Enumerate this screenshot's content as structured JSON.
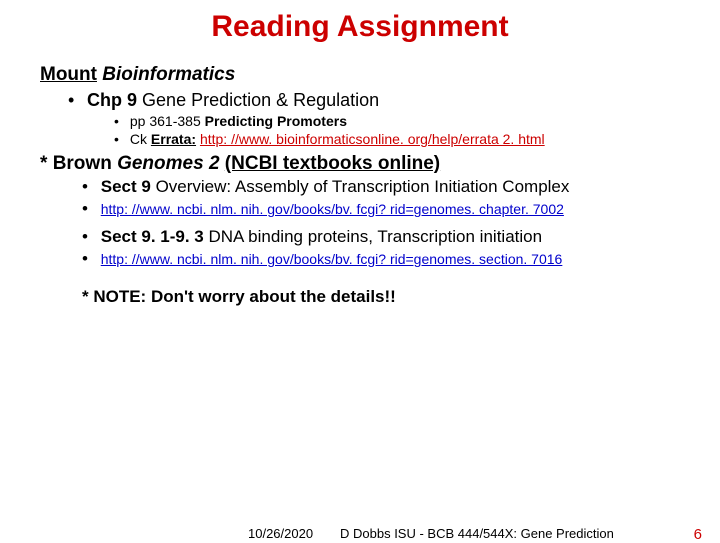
{
  "title": "Reading Assignment",
  "section1": {
    "heading_author": "Mount",
    "heading_book": "Bioinformatics",
    "chapter": "Chp 9",
    "chapter_title": "Gene Prediction & Regulation",
    "pages": "pp 361-385",
    "pages_title": "Predicting Promoters",
    "errata_prefix": "Ck",
    "errata_label": "Errata:",
    "errata_link": "http: //www. bioinformaticsonline. org/help/errata 2. html"
  },
  "section2": {
    "star": "*",
    "heading_author": "Brown",
    "heading_book": "Genomes 2",
    "heading_paren": "(NCBI textbooks online)",
    "item1_bold": "Sect 9",
    "item1_rest": "Overview: Assembly of Transcription Initiation Complex",
    "link1": "http: //www. ncbi. nlm. nih. gov/books/bv. fcgi? rid=genomes. chapter. 7002",
    "item2_bold": "Sect 9. 1-9. 3",
    "item2_rest": "DNA binding proteins, Transcription initiation",
    "link2": "http: //www. ncbi. nlm. nih. gov/books/bv. fcgi? rid=genomes. section. 7016",
    "note": "* NOTE:  Don't worry about the details!!"
  },
  "footer": {
    "date": "10/26/2020",
    "center": "D Dobbs ISU - BCB 444/544X: Gene Prediction",
    "pagenum": "6"
  },
  "colors": {
    "title": "#cc0000",
    "link": "#0000cc",
    "text": "#000000",
    "background": "#ffffff"
  }
}
